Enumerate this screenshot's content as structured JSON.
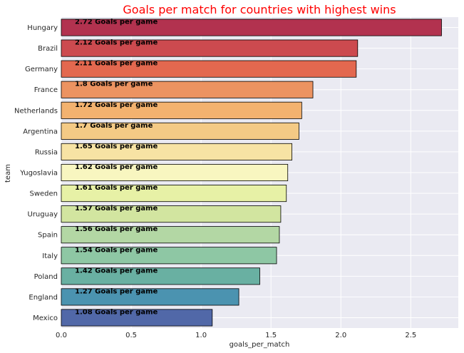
{
  "chart_data": {
    "type": "bar",
    "orientation": "horizontal",
    "title": "Goals per match for countries with highest wins",
    "title_color": "#ff0000",
    "xlabel": "goals_per_match",
    "ylabel": "team",
    "xlim": [
      0,
      2.84
    ],
    "xticks": [
      "0.0",
      "0.5",
      "1.0",
      "1.5",
      "2.0",
      "2.5"
    ],
    "grid": true,
    "legend": "none",
    "background": "#eaeaf2",
    "categories": [
      "Hungary",
      "Brazil",
      "Germany",
      "France",
      "Netherlands",
      "Argentina",
      "Russia",
      "Yugoslavia",
      "Sweden",
      "Uruguay",
      "Spain",
      "Italy",
      "Poland",
      "England",
      "Mexico"
    ],
    "values": [
      2.72,
      2.12,
      2.11,
      1.8,
      1.72,
      1.7,
      1.65,
      1.62,
      1.61,
      1.57,
      1.56,
      1.54,
      1.42,
      1.27,
      1.08
    ],
    "data_labels": [
      "2.72  Goals per game",
      "2.12  Goals per game",
      "2.11  Goals per game",
      "1.8  Goals per game",
      "1.72  Goals per game",
      "1.7  Goals per game",
      "1.65  Goals per game",
      "1.62  Goals per game",
      "1.61  Goals per game",
      "1.57  Goals per game",
      "1.56  Goals per game",
      "1.54  Goals per game",
      "1.42  Goals per game",
      "1.27  Goals per game",
      "1.08  Goals per game"
    ],
    "colors": [
      "#b2324f",
      "#cc4a4f",
      "#e3684f",
      "#ec9361",
      "#f3b26f",
      "#f4ca85",
      "#f7e3a4",
      "#f8f6c0",
      "#e7f1a6",
      "#d2e5a0",
      "#b3d7a4",
      "#8ec7a4",
      "#69b0a2",
      "#4b93b0",
      "#5168a8"
    ]
  }
}
